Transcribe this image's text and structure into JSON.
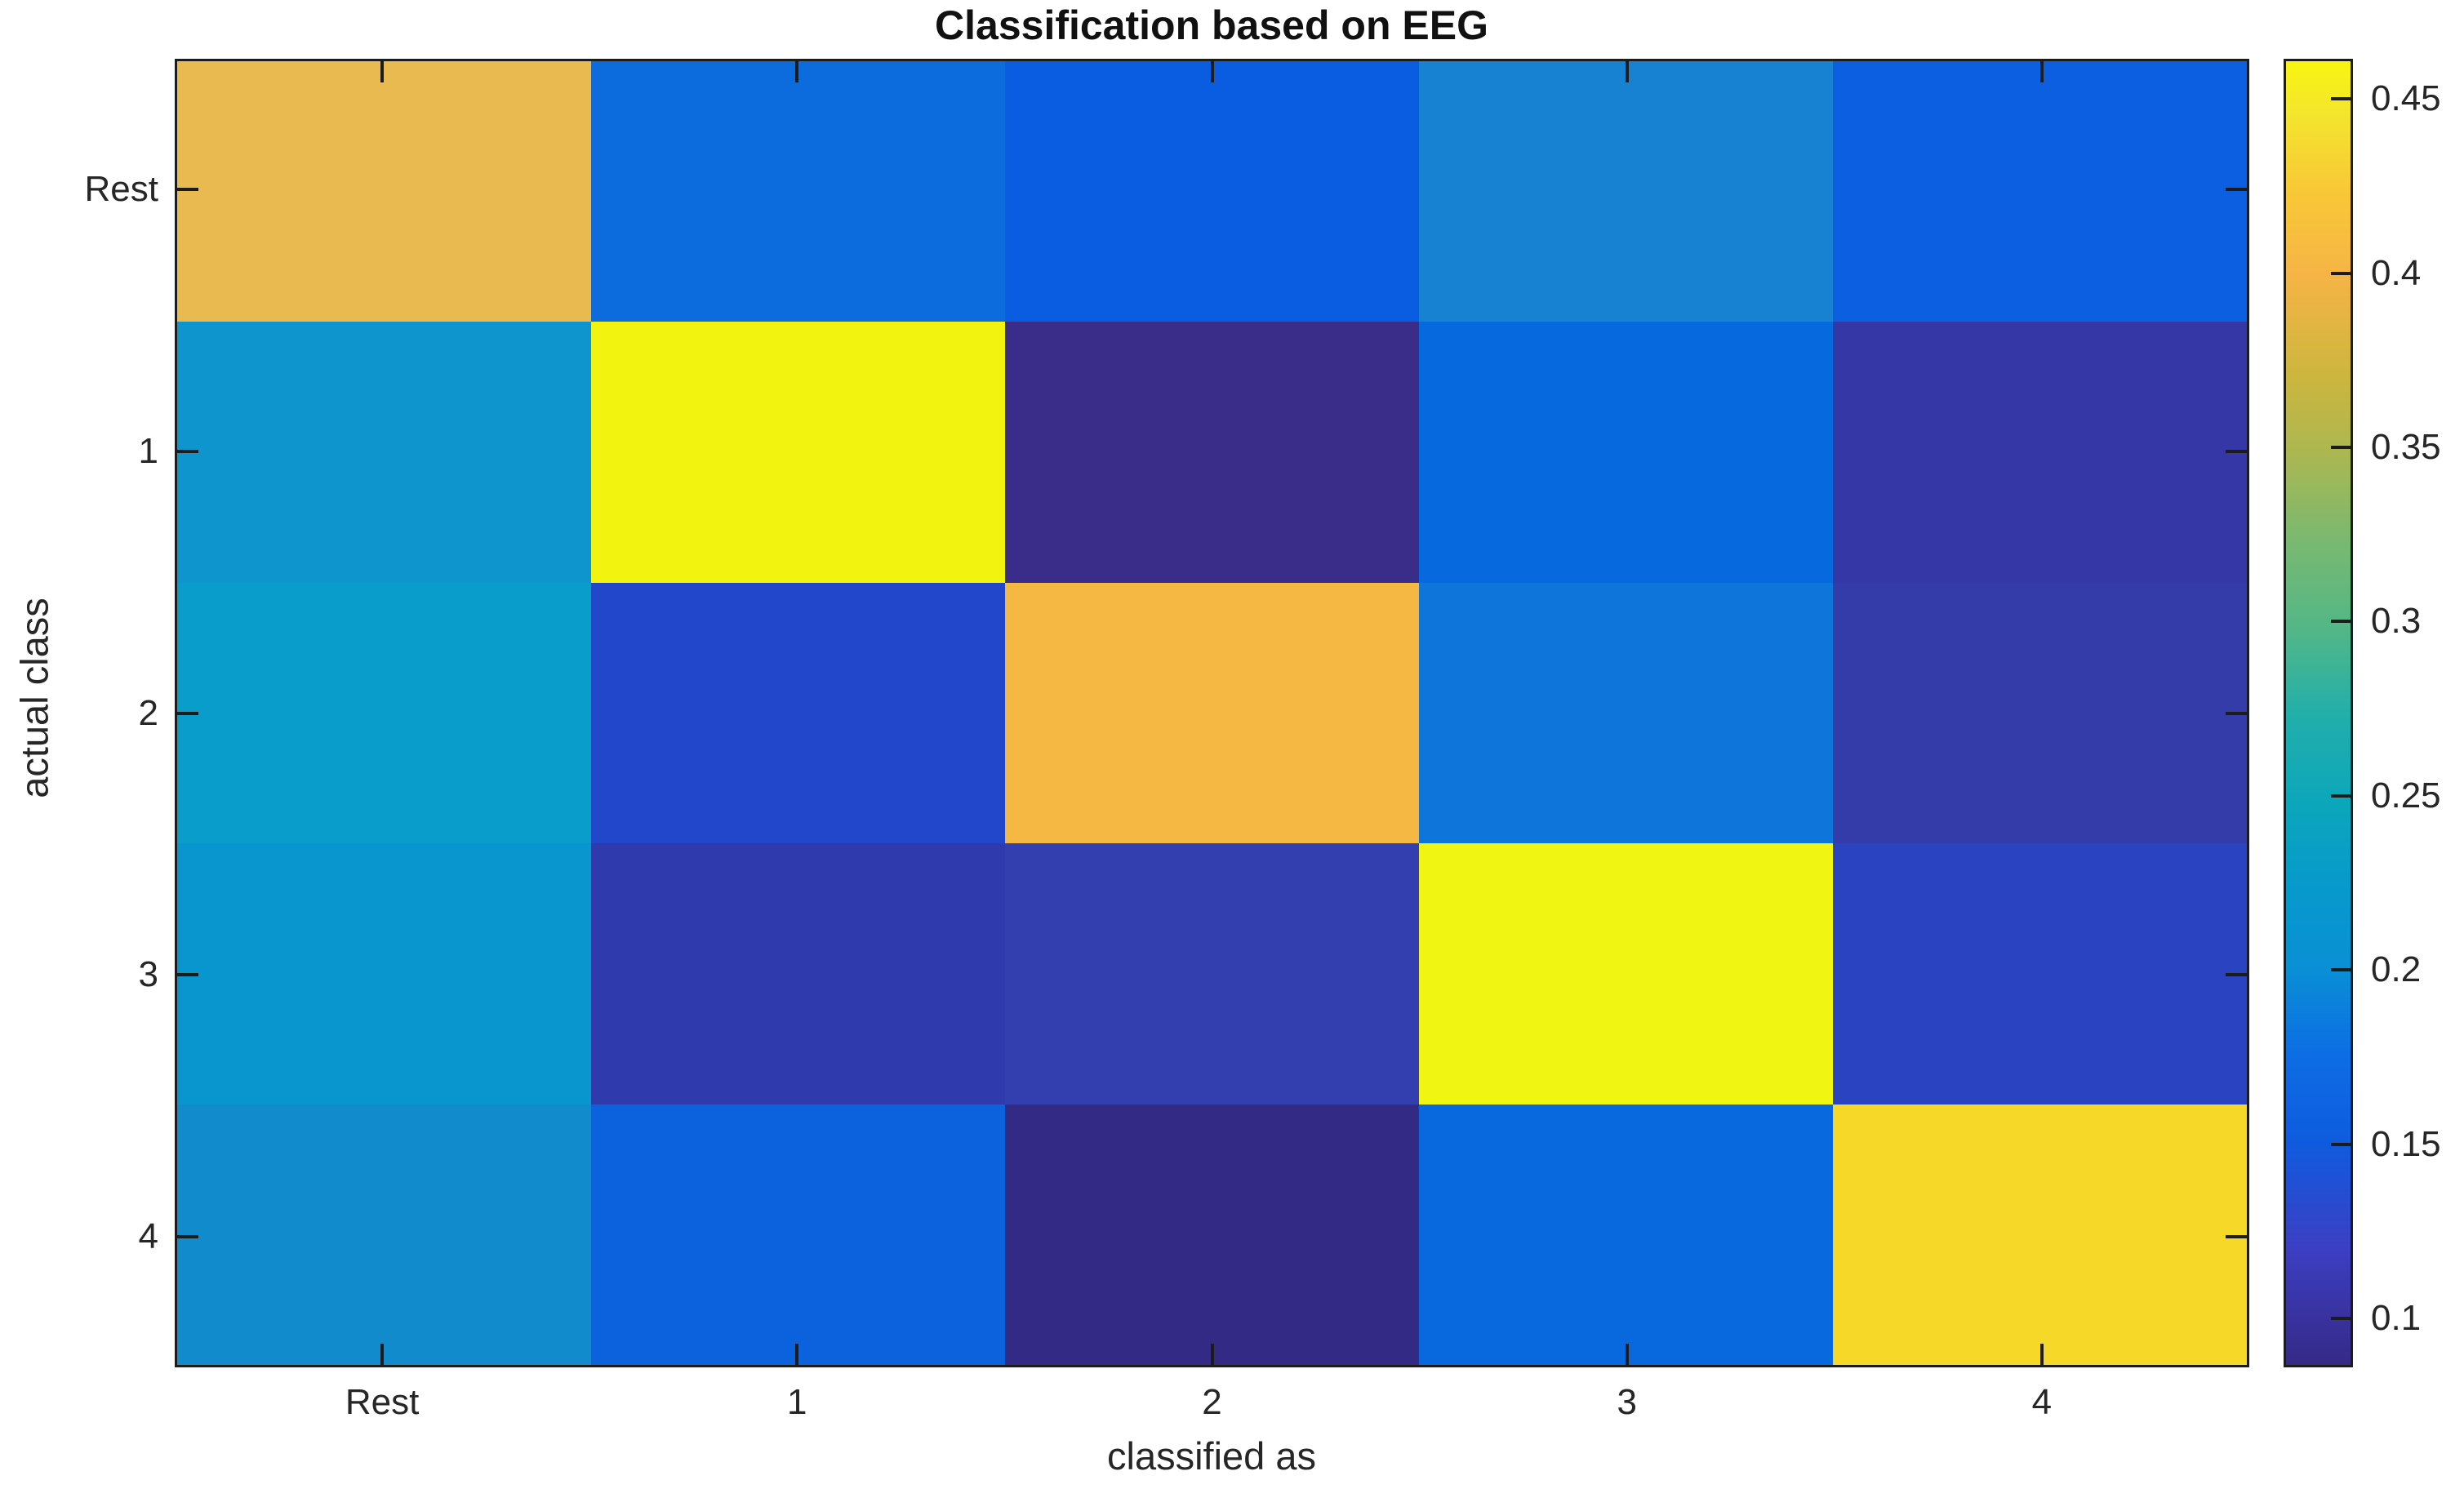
{
  "title": {
    "text": "Classification based on EEG"
  },
  "chart_data": {
    "type": "heatmap",
    "title": "Classification based on EEG",
    "xlabel": "classified as",
    "ylabel": "actual class",
    "x_categories": [
      "Rest",
      "1",
      "2",
      "3",
      "4"
    ],
    "y_categories": [
      "Rest",
      "1",
      "2",
      "3",
      "4"
    ],
    "values": [
      [
        0.4,
        0.163,
        0.148,
        0.186,
        0.151
      ],
      [
        0.206,
        0.455,
        0.092,
        0.158,
        0.104
      ],
      [
        0.214,
        0.131,
        0.408,
        0.17,
        0.108
      ],
      [
        0.206,
        0.106,
        0.11,
        0.454,
        0.121
      ],
      [
        0.196,
        0.152,
        0.086,
        0.158,
        0.44
      ]
    ],
    "cell_colors": [
      [
        "#e8ba4f",
        "#0d6cdd",
        "#0a5ce1",
        "#1782d2",
        "#0b5fe0"
      ],
      [
        "#0e95ce",
        "#f2f410",
        "#3a2d8a",
        "#0669dd",
        "#3437a5"
      ],
      [
        "#089dca",
        "#2347cb",
        "#f5b843",
        "#0e76da",
        "#333ca9"
      ],
      [
        "#0995cd",
        "#2f3bac",
        "#333fae",
        "#f0f511",
        "#2a43c0"
      ],
      [
        "#128bcd",
        "#0c62dc",
        "#322a85",
        "#0769dd",
        "#f6d829"
      ]
    ],
    "grid": false,
    "legend_position": "none",
    "colorbar": {
      "colormap": "parula",
      "min": 0.086,
      "max": 0.4615,
      "tick_values": [
        0.1,
        0.15,
        0.2,
        0.25,
        0.3,
        0.35,
        0.4,
        0.45
      ],
      "tick_labels": [
        "0.1",
        "0.15",
        "0.2",
        "0.25",
        "0.3",
        "0.35",
        "0.4",
        "0.45"
      ],
      "gradient_stops": [
        {
          "pos": 0,
          "color": "#352a87"
        },
        {
          "pos": 3.7,
          "color": "#39329f"
        },
        {
          "pos": 9,
          "color": "#3c3fc3"
        },
        {
          "pos": 17,
          "color": "#0f5bdf"
        },
        {
          "pos": 24,
          "color": "#0d6ee4"
        },
        {
          "pos": 30.4,
          "color": "#0a8fd5"
        },
        {
          "pos": 37,
          "color": "#079acb"
        },
        {
          "pos": 43,
          "color": "#0ca6bb"
        },
        {
          "pos": 50,
          "color": "#23afaa"
        },
        {
          "pos": 56.4,
          "color": "#52b787"
        },
        {
          "pos": 63,
          "color": "#78b971"
        },
        {
          "pos": 70,
          "color": "#acb751"
        },
        {
          "pos": 76,
          "color": "#cdb63e"
        },
        {
          "pos": 83.6,
          "color": "#f6b446"
        },
        {
          "pos": 90,
          "color": "#f8c837"
        },
        {
          "pos": 96,
          "color": "#f4e52d"
        },
        {
          "pos": 100,
          "color": "#f9f511"
        }
      ]
    },
    "colors": {
      "text": "#262626",
      "spine": "#1c1c1c",
      "background": "#ffffff"
    }
  }
}
